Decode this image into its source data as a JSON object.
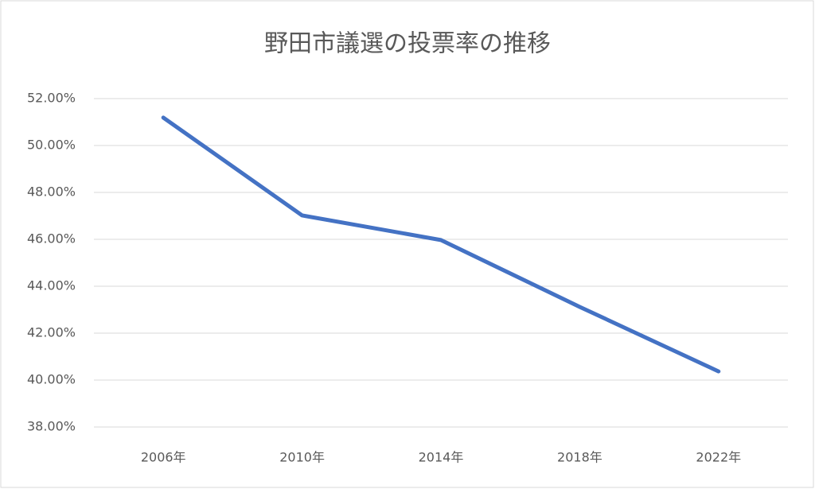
{
  "chart_data": {
    "type": "line",
    "title": "野田市議選の投票率の推移",
    "categories": [
      "2006年",
      "2010年",
      "2014年",
      "2018年",
      "2022年"
    ],
    "series": [
      {
        "name": "投票率",
        "color": "#4472c4",
        "values": [
          51.19,
          47.02,
          45.97,
          43.12,
          40.37
        ]
      }
    ],
    "ylim": [
      38,
      52
    ],
    "yticks": [
      {
        "value": 38,
        "label": "38.00%"
      },
      {
        "value": 40,
        "label": "40.00%"
      },
      {
        "value": 42,
        "label": "42.00%"
      },
      {
        "value": 44,
        "label": "44.00%"
      },
      {
        "value": 46,
        "label": "46.00%"
      },
      {
        "value": 48,
        "label": "48.00%"
      },
      {
        "value": 50,
        "label": "50.00%"
      },
      {
        "value": 52,
        "label": "52.00%"
      }
    ],
    "grid": true,
    "legend": false
  }
}
